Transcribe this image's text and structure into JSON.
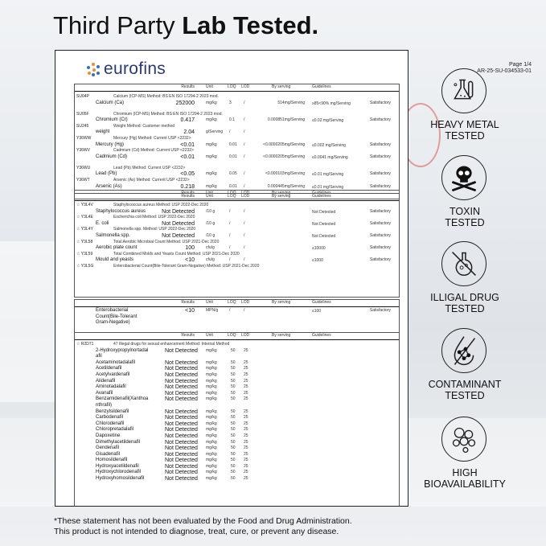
{
  "title": {
    "regular": "Third Party ",
    "bold": "Lab Tested."
  },
  "report": {
    "logo_text": "eurofins",
    "page": "Page 1/4",
    "report_id": "AR-25-SU-034533-01",
    "columns": {
      "results": "Results",
      "unit": "Unit",
      "loq": "LOQ",
      "lod": "LOD",
      "by_serving": "By serving",
      "guidelines": "Guidelines"
    },
    "table1": [
      {
        "code": "SU04P",
        "desc": "Calcium (ICP-MS)   Method: BS EN ISO 17294-2 2023 mod."
      },
      {
        "name": "Calcium (Ca)",
        "result": "252000",
        "unit": "mg/kg",
        "loq": "3",
        "lod": "/",
        "serving": "514mg/Serving",
        "guide": "≥85<90% mg/Serving",
        "status": "Satisfactory",
        "tall": true
      },
      {
        "code": "SU05F",
        "desc": "Chromium (ICP-MS)   Method: BS EN ISO 17294-2 2023 mod."
      },
      {
        "name": "Chromium (Cr)",
        "result": "0.417",
        "unit": "mg/kg",
        "loq": "0.1",
        "lod": "/",
        "serving": "0.000851mg/Serving",
        "guide": "≤0.02 mg/Serving",
        "status": "Satisfactory"
      },
      {
        "code": "SU245",
        "desc": "Weight   Method: Customer method"
      },
      {
        "name": "weight",
        "result": "2.04",
        "unit": "g/Serving",
        "loq": "/",
        "lod": "/"
      },
      {
        "code": "Y36WW",
        "desc": "Mercury (Hg)   Method: Current USP <2232>"
      },
      {
        "name": "Mercury (Hg)",
        "result": "<0.01",
        "unit": "mg/kg",
        "loq": "0.01",
        "lod": "/",
        "serving": "<0.0000205mg/Serving",
        "guide": "≤0.002 mg/Serving",
        "status": "Satisfactory"
      },
      {
        "code": "Y36WV",
        "desc": "Cadmium (Cd)   Method: Current USP <2232>"
      },
      {
        "name": "Cadmium (Cd)",
        "result": "<0.01",
        "unit": "mg/kg",
        "loq": "0.01",
        "lod": "/",
        "serving": "<0.0000205mg/Serving",
        "guide": "≤0.0041 mg/Serving",
        "status": "Satisfactory",
        "tall": true
      },
      {
        "code": "Y36WU",
        "desc": "Lead (Pb)   Method: Current USP <2232>"
      },
      {
        "name": "Lead (Pb)",
        "result": "<0.05",
        "unit": "mg/kg",
        "loq": "0.05",
        "lod": "/",
        "serving": "<0.000103mg/Serving",
        "guide": "≤0.01 mg/Serving",
        "status": "Satisfactory"
      },
      {
        "code": "Y36WT",
        "desc": "Arsenic (As)   Method: Current USP <2232>"
      },
      {
        "name": "Arsenic (As)",
        "result": "0.218",
        "unit": "mg/kg",
        "loq": "0.01",
        "lod": "/",
        "serving": "0.000445mg/Serving",
        "guide": "≤0.01 mg/Serving",
        "status": "Satisfactory"
      }
    ],
    "table2": [
      {
        "code": "☆ Y3L4V",
        "desc": "Staphylococcus aureus   Method: USP 2022-Dec 2020"
      },
      {
        "name": "Staphylococcus aureus",
        "result": "Not Detected",
        "unit": "/10 g",
        "loq": "/",
        "lod": "/",
        "guide": "Not Detected",
        "status": "Satisfactory"
      },
      {
        "code": "☆ Y3L4E",
        "desc": "Escherichia coli   Method: USP 2022-Dec 2020"
      },
      {
        "name": "E. coli",
        "result": "Not Detected",
        "unit": "/10 g",
        "loq": "/",
        "lod": "/",
        "guide": "Not Detected",
        "status": "Satisfactory"
      },
      {
        "code": "☆ Y3L4Y",
        "desc": "Salmonella spp.   Method: USP 2022-Dec 2020"
      },
      {
        "name": "Salmonella spp.",
        "result": "Not Detected",
        "unit": "/10 g",
        "loq": "/",
        "lod": "/",
        "guide": "Not Detected",
        "status": "Satisfactory"
      },
      {
        "code": "☆ Y3L58",
        "desc": "Total Aerobic Microbial Count   Method: USP 2021-Dec 2020"
      },
      {
        "name": "Aerobic plate count",
        "result": "100",
        "unit": "cfu/g",
        "loq": "/",
        "lod": "/",
        "guide": "≤10000",
        "status": "Satisfactory"
      },
      {
        "code": "☆ Y3L59",
        "desc": "Total Combined Molds and Yeasts Count   Method: USP 2021-Dec 2020"
      },
      {
        "name": "Mould and yeasts",
        "result": "<10",
        "unit": "cfu/g",
        "loq": "/",
        "lod": "/",
        "guide": "≤1000",
        "status": "Satisfactory"
      },
      {
        "code": "☆ Y3L5G",
        "desc": "Enterobacterial Count(Bile-Tolerant Gram-Negative)   Method: USP 2021-Dec 2020"
      }
    ],
    "table3": [
      {
        "name": "Enterobacterial",
        "result": "<10",
        "unit": "MPN/g",
        "loq": "/",
        "lod": "/",
        "guide": "≤100",
        "status": "Satisfactory"
      },
      {
        "name": "Count(Bile-Tolerant"
      },
      {
        "name": "Gram-Negative)"
      }
    ],
    "table4": [
      {
        "code": "☆ R2D71",
        "desc": "47 Illegal drugs for sexual enhancement   Method: Internal Method"
      },
      {
        "name": "2-Hydroxypropylnortadal",
        "result": "Not Detected",
        "unit": "mg/kg",
        "loq": "50",
        "lod": "25"
      },
      {
        "name": "afil"
      },
      {
        "name": "Acetaminotadalafil",
        "result": "Not Detected",
        "unit": "mg/kg",
        "loq": "50",
        "lod": "25"
      },
      {
        "name": "Acetildenafil",
        "result": "Not Detected",
        "unit": "mg/kg",
        "loq": "50",
        "lod": "25"
      },
      {
        "name": "Acetylvardenafil",
        "result": "Not Detected",
        "unit": "mg/kg",
        "loq": "50",
        "lod": "25"
      },
      {
        "name": "Alidenafil",
        "result": "Not Detected",
        "unit": "mg/kg",
        "loq": "50",
        "lod": "25"
      },
      {
        "name": "Aminotadalafil",
        "result": "Not Detected",
        "unit": "mg/kg",
        "loq": "50",
        "lod": "25"
      },
      {
        "name": "Avanafil",
        "result": "Not Detected",
        "unit": "mg/kg",
        "loq": "50",
        "lod": "25"
      },
      {
        "name": "Benzamidenafil(Xanthoa",
        "result": "Not Detected",
        "unit": "mg/kg",
        "loq": "50",
        "lod": "25"
      },
      {
        "name": "nthrafil)"
      },
      {
        "name": "Benzylsildenafil",
        "result": "Not Detected",
        "unit": "mg/kg",
        "loq": "50",
        "lod": "25"
      },
      {
        "name": "Carbodenafil",
        "result": "Not Detected",
        "unit": "mg/kg",
        "loq": "50",
        "lod": "25"
      },
      {
        "name": "Chlorodenafil",
        "result": "Not Detected",
        "unit": "mg/kg",
        "loq": "50",
        "lod": "25"
      },
      {
        "name": "Chloropretadalafil",
        "result": "Not Detected",
        "unit": "mg/kg",
        "loq": "50",
        "lod": "25"
      },
      {
        "name": "Dapoxetine",
        "result": "Not Detected",
        "unit": "mg/kg",
        "loq": "50",
        "lod": "25"
      },
      {
        "name": "Dimethylacetildenafil",
        "result": "Not Detected",
        "unit": "mg/kg",
        "loq": "50",
        "lod": "25"
      },
      {
        "name": "Gendenafil",
        "result": "Not Detected",
        "unit": "mg/kg",
        "loq": "50",
        "lod": "25"
      },
      {
        "name": "Gisadenafil",
        "result": "Not Detected",
        "unit": "mg/kg",
        "loq": "50",
        "lod": "25"
      },
      {
        "name": "Homosildenafil",
        "result": "Not Detected",
        "unit": "mg/kg",
        "loq": "50",
        "lod": "25"
      },
      {
        "name": "Hydroxyacetildenafil",
        "result": "Not Detected",
        "unit": "mg/kg",
        "loq": "50",
        "lod": "25"
      },
      {
        "name": "Hydroxychlorodenafil",
        "result": "Not Detected",
        "unit": "mg/kg",
        "loq": "50",
        "lod": "25"
      },
      {
        "name": "Hydroxyhomosildenafil",
        "result": "Not Detected",
        "unit": "mg/kg",
        "loq": "50",
        "lod": "25"
      }
    ]
  },
  "badges": [
    {
      "icon": "flask-icon",
      "line1": "HEAVY METAL",
      "line2": "TESTED"
    },
    {
      "icon": "skull-icon",
      "line1": "TOXIN",
      "line2": "TESTED"
    },
    {
      "icon": "no-drug-icon",
      "line1": "ILLIGAL DRUG",
      "line2": "TESTED"
    },
    {
      "icon": "contaminant-icon",
      "line1": "CONTAMINANT",
      "line2": "TESTED"
    },
    {
      "icon": "bubbles-icon",
      "line1": "HIGH",
      "line2": "BIOAVAILABILITY"
    }
  ],
  "footer": {
    "line1": "*These statement has not been evaluated by the Food and Drug Administration.",
    "line2": "This product is not intended to diagnose, treat, cure, or prevent any disease."
  }
}
